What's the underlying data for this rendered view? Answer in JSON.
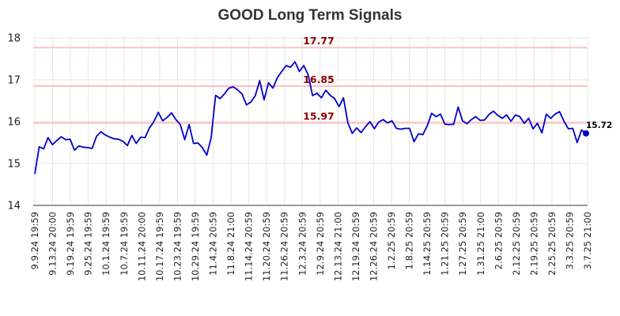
{
  "chart_data": {
    "type": "line",
    "title": "GOOD Long Term Signals",
    "xlabel": "",
    "ylabel": "",
    "ylim": [
      14,
      18
    ],
    "yticks": [
      "14",
      "15",
      "16",
      "17",
      "18"
    ],
    "grid": true,
    "x_ticks": [
      "9.9.24 19:59",
      "9.13.24 20:00",
      "9.19.24 19:59",
      "9.25.24 19:59",
      "10.1.24 19:59",
      "10.7.24 19:59",
      "10.11.24 20:00",
      "10.17.24 19:59",
      "10.23.24 19:59",
      "10.29.24 19:59",
      "11.4.24 20:59",
      "11.8.24 21:00",
      "11.14.24 20:59",
      "11.20.24 20:59",
      "11.26.24 20:59",
      "12.3.24 20:59",
      "12.9.24 20:59",
      "12.13.24 21:00",
      "12.19.24 20:59",
      "12.26.24 20:59",
      "1.2.25 20:59",
      "1.8.25 20:59",
      "1.14.25 20:59",
      "1.21.25 20:59",
      "1.27.25 20:59",
      "1.31.25 21:00",
      "2.6.25 20:59",
      "2.12.25 20:59",
      "2.19.25 20:59",
      "2.25.25 20:59",
      "3.3.25 20:59",
      "3.7.25 21:00"
    ],
    "series": [
      {
        "color": "#0000cc",
        "values": [
          14.75,
          15.4,
          15.35,
          15.62,
          15.45,
          15.55,
          15.64,
          15.57,
          15.58,
          15.32,
          15.42,
          15.39,
          15.38,
          15.36,
          15.65,
          15.76,
          15.68,
          15.63,
          15.59,
          15.58,
          15.53,
          15.43,
          15.67,
          15.48,
          15.63,
          15.62,
          15.85,
          16.0,
          16.22,
          16.02,
          16.1,
          16.21,
          16.05,
          15.93,
          15.57,
          15.93,
          15.48,
          15.49,
          15.38,
          15.2,
          15.62,
          16.63,
          16.55,
          16.66,
          16.8,
          16.83,
          16.76,
          16.66,
          16.4,
          16.47,
          16.62,
          16.98,
          16.52,
          16.93,
          16.8,
          17.05,
          17.2,
          17.34,
          17.3,
          17.43,
          17.2,
          17.34,
          17.12,
          16.62,
          16.68,
          16.57,
          16.75,
          16.63,
          16.55,
          16.36,
          16.57,
          15.97,
          15.72,
          15.85,
          15.74,
          15.88,
          16.0,
          15.83,
          15.99,
          16.05,
          15.97,
          16.02,
          15.84,
          15.82,
          15.84,
          15.84,
          15.52,
          15.71,
          15.69,
          15.9,
          16.2,
          16.12,
          16.18,
          15.94,
          15.93,
          15.94,
          16.35,
          16.02,
          15.95,
          16.05,
          16.12,
          16.03,
          16.04,
          16.17,
          16.25,
          16.15,
          16.08,
          16.16,
          16.01,
          16.16,
          16.12,
          15.96,
          16.08,
          15.83,
          15.96,
          15.73,
          16.18,
          16.08,
          16.18,
          16.24,
          16.01,
          15.83,
          15.84,
          15.5,
          15.8,
          15.72
        ]
      }
    ],
    "signal_levels": [
      {
        "value": 17.77,
        "label": "17.77",
        "color": "#ffc0c0"
      },
      {
        "value": 16.85,
        "label": "16.85",
        "color": "#ffc0c0"
      },
      {
        "value": 15.97,
        "label": "15.97",
        "color": "#ffc0c0"
      }
    ],
    "last_value_label": "15.72"
  }
}
